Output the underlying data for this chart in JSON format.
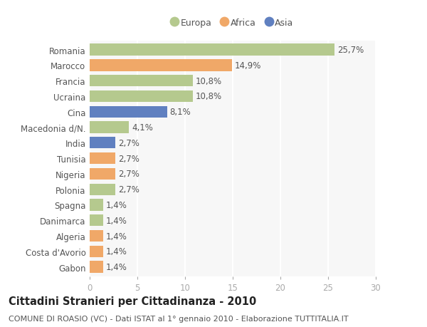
{
  "categories": [
    "Romania",
    "Marocco",
    "Francia",
    "Ucraina",
    "Cina",
    "Macedonia d/N.",
    "India",
    "Tunisia",
    "Nigeria",
    "Polonia",
    "Spagna",
    "Danimarca",
    "Algeria",
    "Costa d'Avorio",
    "Gabon"
  ],
  "values": [
    25.7,
    14.9,
    10.8,
    10.8,
    8.1,
    4.1,
    2.7,
    2.7,
    2.7,
    2.7,
    1.4,
    1.4,
    1.4,
    1.4,
    1.4
  ],
  "labels": [
    "25,7%",
    "14,9%",
    "10,8%",
    "10,8%",
    "8,1%",
    "4,1%",
    "2,7%",
    "2,7%",
    "2,7%",
    "2,7%",
    "1,4%",
    "1,4%",
    "1,4%",
    "1,4%",
    "1,4%"
  ],
  "continents": [
    "Europa",
    "Africa",
    "Europa",
    "Europa",
    "Asia",
    "Europa",
    "Asia",
    "Africa",
    "Africa",
    "Europa",
    "Europa",
    "Europa",
    "Africa",
    "Africa",
    "Africa"
  ],
  "colors": {
    "Europa": "#b5c98e",
    "Africa": "#f0a868",
    "Asia": "#6080c0"
  },
  "legend_entries": [
    "Europa",
    "Africa",
    "Asia"
  ],
  "legend_colors": [
    "#b5c98e",
    "#f0a868",
    "#6080c0"
  ],
  "title": "Cittadini Stranieri per Cittadinanza - 2010",
  "subtitle": "COMUNE DI ROASIO (VC) - Dati ISTAT al 1° gennaio 2010 - Elaborazione TUTTITALIA.IT",
  "xlim": [
    0,
    30
  ],
  "xticks": [
    0,
    5,
    10,
    15,
    20,
    25,
    30
  ],
  "bg_color": "#ffffff",
  "plot_bg_color": "#f7f7f7",
  "grid_color": "#ffffff",
  "bar_height": 0.75,
  "label_fontsize": 8.5,
  "tick_fontsize": 8.5,
  "title_fontsize": 10.5,
  "subtitle_fontsize": 8.0
}
